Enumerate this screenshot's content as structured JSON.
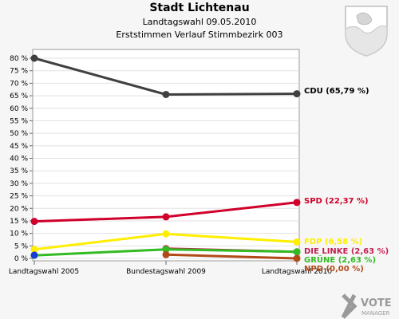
{
  "title": "Stadt Lichtenau",
  "subtitle": "Landtagswahl 09.05.2010",
  "subtitle2": "Erststimmen Verlauf Stimmbezirk 003",
  "brand": {
    "line1": "VOTE",
    "line2": "MANAGER"
  },
  "chart_data": {
    "type": "line",
    "categories": [
      "Landtagswahl 2005",
      "Bundestagswahl 2009",
      "Landtagswahl 2010"
    ],
    "ylim": [
      0,
      80
    ],
    "yticks": [
      "0 %",
      "5 %",
      "10 %",
      "15 %",
      "20 %",
      "25 %",
      "30 %",
      "35 %",
      "40 %",
      "45 %",
      "50 %",
      "55 %",
      "60 %",
      "65 %",
      "70 %",
      "75 %",
      "80 %"
    ],
    "grid": true,
    "series": [
      {
        "name": "CDU",
        "label": "CDU (65,79 %)",
        "color": "#404040",
        "values": [
          80,
          65.5,
          65.79
        ]
      },
      {
        "name": "SPD",
        "label": "SPD (22,37 %)",
        "color": "#d0002a",
        "values": [
          14.8,
          16.6,
          22.37
        ]
      },
      {
        "name": "FDP",
        "label": "FDP (6,58 %)",
        "color": "#ffee00",
        "values": [
          3.6,
          9.8,
          6.58
        ]
      },
      {
        "name": "DIE LINKE",
        "label": "DIE LINKE (2,63 %)",
        "color": "#c41f50",
        "values": [
          null,
          3.9,
          2.63
        ]
      },
      {
        "name": "GRÜNE",
        "label": "GRÜNE (2,63 %)",
        "color": "#33bb22",
        "values": [
          1.2,
          3.6,
          2.63
        ]
      },
      {
        "name": "NPD",
        "label": "NPD (0,00 %)",
        "color": "#b24a18",
        "values": [
          null,
          1.5,
          0.0
        ]
      },
      {
        "name": "",
        "label": "",
        "color": "#1a3bd6",
        "values": [
          1.3,
          null,
          null
        ]
      }
    ]
  }
}
